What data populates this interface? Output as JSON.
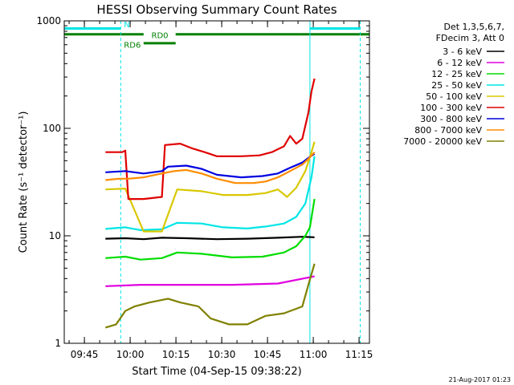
{
  "chart_data": {
    "type": "line",
    "title": "HESSI Observing Summary Count Rates",
    "xlabel": "Start Time (04-Sep-15 09:38:22)",
    "ylabel": "Count Rate (s⁻¹ detector⁻¹)",
    "footer": "21-Aug-2017 01:23",
    "x_unit": "minutes after 09:38:22 UT",
    "xlim": [
      0,
      100
    ],
    "ylim": [
      1,
      1000
    ],
    "yscale": "log",
    "x_ticks": [
      {
        "x": 6.6,
        "label": "09:45"
      },
      {
        "x": 21.6,
        "label": "10:00"
      },
      {
        "x": 36.6,
        "label": "10:15"
      },
      {
        "x": 51.6,
        "label": "10:30"
      },
      {
        "x": 66.6,
        "label": "10:45"
      },
      {
        "x": 81.6,
        "label": "11:00"
      },
      {
        "x": 96.6,
        "label": "11:15"
      }
    ],
    "y_ticks": [
      {
        "y": 1,
        "label": "1"
      },
      {
        "y": 10,
        "label": "10"
      },
      {
        "y": 100,
        "label": "100"
      },
      {
        "y": 1000,
        "label": "1000"
      }
    ],
    "legend_header": [
      "Det 1,3,5,6,7,",
      "FDecim 3, Att 0"
    ],
    "legend_position": "right",
    "series": [
      {
        "name": "3 - 6 keV",
        "color": "#000000",
        "segments": [
          [
            [
              13.5,
              9.4
            ],
            [
              20,
              9.5
            ],
            [
              26,
              9.3
            ],
            [
              32,
              9.6
            ],
            [
              40,
              9.5
            ],
            [
              50,
              9.3
            ],
            [
              60,
              9.4
            ],
            [
              70,
              9.6
            ],
            [
              78,
              9.8
            ],
            [
              82,
              9.7
            ]
          ]
        ]
      },
      {
        "name": "6 - 12 keV",
        "color": "#e000e0",
        "segments": [
          [
            [
              13.5,
              3.4
            ],
            [
              25,
              3.5
            ],
            [
              40,
              3.5
            ],
            [
              55,
              3.5
            ],
            [
              70,
              3.6
            ],
            [
              82,
              4.2
            ]
          ]
        ]
      },
      {
        "name": "12 - 25 keV",
        "color": "#00dd00",
        "segments": [
          [
            [
              13.5,
              6.2
            ],
            [
              20,
              6.4
            ],
            [
              25,
              6.0
            ],
            [
              32,
              6.2
            ],
            [
              37,
              7.0
            ],
            [
              45,
              6.8
            ],
            [
              55,
              6.3
            ],
            [
              65,
              6.4
            ],
            [
              72,
              7.0
            ],
            [
              76,
              8.0
            ],
            [
              79,
              10
            ],
            [
              80.5,
              12
            ],
            [
              82,
              22
            ]
          ]
        ]
      },
      {
        "name": "25 - 50 keV",
        "color": "#00e5e5",
        "segments": [
          [
            [
              13.5,
              11.6
            ],
            [
              20,
              12.0
            ],
            [
              25,
              11.3
            ],
            [
              32,
              11.5
            ],
            [
              37,
              13.2
            ],
            [
              45,
              13.0
            ],
            [
              52,
              12.0
            ],
            [
              60,
              11.7
            ],
            [
              66,
              12.2
            ],
            [
              72,
              13.0
            ],
            [
              76,
              15
            ],
            [
              79,
              20
            ],
            [
              81,
              35
            ],
            [
              82,
              55
            ]
          ]
        ]
      },
      {
        "name": "50 - 100 keV",
        "color": "#d8c800",
        "segments": [
          [
            [
              13.5,
              27
            ],
            [
              20,
              27.5
            ],
            [
              26,
              11
            ],
            [
              32,
              11
            ],
            [
              37,
              27
            ],
            [
              45,
              26
            ],
            [
              52,
              24
            ],
            [
              60,
              24
            ],
            [
              66,
              25
            ],
            [
              70,
              27
            ],
            [
              73,
              23
            ],
            [
              76,
              28
            ],
            [
              79,
              40
            ],
            [
              81,
              60
            ],
            [
              82,
              75
            ]
          ]
        ]
      },
      {
        "name": "100 - 300 keV",
        "color": "#e00000",
        "segments": [
          [
            [
              13.5,
              60
            ],
            [
              19,
              60
            ],
            [
              20,
              62
            ],
            [
              21,
              22
            ],
            [
              26,
              22
            ],
            [
              32,
              23
            ],
            [
              33,
              70
            ],
            [
              38,
              72
            ],
            [
              42,
              65
            ],
            [
              46,
              60
            ],
            [
              50,
              55
            ],
            [
              58,
              55
            ],
            [
              64,
              56
            ],
            [
              68,
              60
            ],
            [
              72,
              68
            ],
            [
              74,
              85
            ],
            [
              76,
              72
            ],
            [
              78,
              80
            ],
            [
              80,
              140
            ],
            [
              81,
              220
            ],
            [
              82,
              290
            ]
          ]
        ]
      },
      {
        "name": "300 - 800 keV",
        "color": "#0000e0",
        "segments": [
          [
            [
              13.5,
              39
            ],
            [
              20,
              40
            ],
            [
              26,
              38
            ],
            [
              32,
              40
            ],
            [
              34,
              44
            ],
            [
              40,
              45
            ],
            [
              45,
              42
            ],
            [
              50,
              37
            ],
            [
              58,
              35
            ],
            [
              65,
              36
            ],
            [
              70,
              38
            ],
            [
              74,
              43
            ],
            [
              78,
              48
            ],
            [
              80,
              53
            ],
            [
              82,
              58
            ]
          ]
        ]
      },
      {
        "name": "800 - 7000 keV",
        "color": "#ff8c00",
        "segments": [
          [
            [
              13.5,
              33
            ],
            [
              18,
              34
            ],
            [
              21,
              34
            ],
            [
              26,
              35
            ],
            [
              32,
              38
            ],
            [
              36,
              40
            ],
            [
              40,
              41
            ],
            [
              45,
              38
            ],
            [
              50,
              34
            ],
            [
              56,
              31
            ],
            [
              62,
              31
            ],
            [
              66,
              32
            ],
            [
              70,
              35
            ],
            [
              74,
              40
            ],
            [
              78,
              46
            ],
            [
              80,
              52
            ],
            [
              82,
              60
            ]
          ]
        ]
      },
      {
        "name": "7000 - 20000 keV",
        "color": "#808000",
        "segments": [
          [
            [
              13.5,
              1.4
            ],
            [
              17,
              1.5
            ],
            [
              20,
              2.0
            ],
            [
              23,
              2.2
            ],
            [
              28,
              2.4
            ],
            [
              34,
              2.6
            ],
            [
              38,
              2.4
            ],
            [
              44,
              2.2
            ],
            [
              48,
              1.7
            ],
            [
              54,
              1.5
            ],
            [
              60,
              1.5
            ],
            [
              66,
              1.8
            ],
            [
              72,
              1.9
            ],
            [
              78,
              2.2
            ],
            [
              80,
              3.5
            ],
            [
              82,
              5.5
            ]
          ]
        ]
      }
    ],
    "bands": [
      {
        "label": "N",
        "color": "#00e5e5",
        "y": 850,
        "label_y": 930,
        "intervals": [
          [
            0,
            18.5
          ],
          [
            80.5,
            97
          ]
        ],
        "label_x": 18.5
      },
      {
        "label": "RD0",
        "color": "#008000",
        "y": 750,
        "label_y": 740,
        "intervals": [
          [
            0,
            26
          ],
          [
            36.5,
            77
          ],
          [
            77,
            100
          ]
        ],
        "label_x": 27.5
      },
      {
        "label": "RD6",
        "color": "#008000",
        "y": 620,
        "label_y": 600,
        "intervals": [
          [
            26,
            36.5
          ]
        ],
        "label_x": 18.5
      }
    ],
    "vlines": [
      {
        "x": 0,
        "color": "#00e5e5",
        "style": "solid"
      },
      {
        "x": 18.5,
        "color": "#00e5e5",
        "style": "dashed"
      },
      {
        "x": 80.5,
        "color": "#00e5e5",
        "style": "solid"
      },
      {
        "x": 97,
        "color": "#00e5e5",
        "style": "dashed"
      }
    ]
  }
}
